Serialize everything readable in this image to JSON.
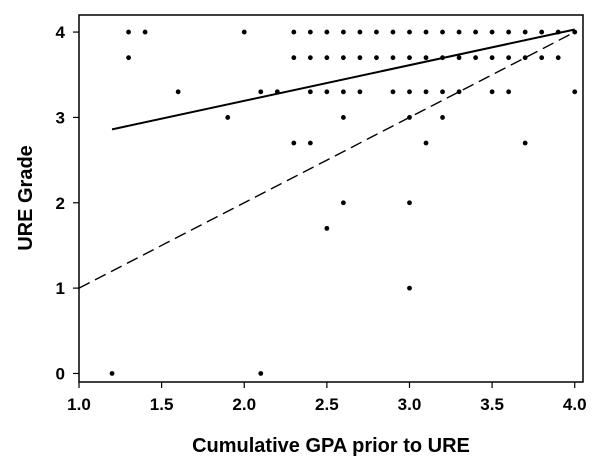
{
  "chart_data": {
    "type": "scatter",
    "title": "",
    "xlabel": "Cumulative GPA prior to URE",
    "ylabel": "URE Grade",
    "xlim": [
      1.0,
      4.05
    ],
    "ylim": [
      -0.1,
      4.2
    ],
    "xticks": [
      1.0,
      1.5,
      2.0,
      2.5,
      3.0,
      3.5,
      4.0
    ],
    "xtick_labels": [
      "1.0",
      "1.5",
      "2.0",
      "2.5",
      "3.0",
      "3.5",
      "4.0"
    ],
    "yticks": [
      0,
      1,
      2,
      3,
      4
    ],
    "ytick_labels": [
      "0",
      "1",
      "2",
      "3",
      "4"
    ],
    "grid": false,
    "legend": "none",
    "marker_color": "#000000",
    "points": [
      [
        1.2,
        0
      ],
      [
        2.1,
        0
      ],
      [
        3.0,
        1
      ],
      [
        2.5,
        1.7
      ],
      [
        2.6,
        2
      ],
      [
        3.0,
        2
      ],
      [
        2.3,
        2.7
      ],
      [
        2.4,
        2.7
      ],
      [
        3.1,
        2.7
      ],
      [
        3.7,
        2.7
      ],
      [
        1.9,
        3
      ],
      [
        2.6,
        3
      ],
      [
        3.0,
        3
      ],
      [
        3.2,
        3
      ],
      [
        1.6,
        3.3
      ],
      [
        2.1,
        3.3
      ],
      [
        2.2,
        3.3
      ],
      [
        2.4,
        3.3
      ],
      [
        2.5,
        3.3
      ],
      [
        2.6,
        3.3
      ],
      [
        2.7,
        3.3
      ],
      [
        2.9,
        3.3
      ],
      [
        3.0,
        3.3
      ],
      [
        3.1,
        3.3
      ],
      [
        3.2,
        3.3
      ],
      [
        3.3,
        3.3
      ],
      [
        3.5,
        3.3
      ],
      [
        3.6,
        3.3
      ],
      [
        4.0,
        3.3
      ],
      [
        1.3,
        3.7
      ],
      [
        2.3,
        3.7
      ],
      [
        2.4,
        3.7
      ],
      [
        2.5,
        3.7
      ],
      [
        2.6,
        3.7
      ],
      [
        2.7,
        3.7
      ],
      [
        2.8,
        3.7
      ],
      [
        2.9,
        3.7
      ],
      [
        3.0,
        3.7
      ],
      [
        3.1,
        3.7
      ],
      [
        3.2,
        3.7
      ],
      [
        3.3,
        3.7
      ],
      [
        3.4,
        3.7
      ],
      [
        3.5,
        3.7
      ],
      [
        3.6,
        3.7
      ],
      [
        3.7,
        3.7
      ],
      [
        3.8,
        3.7
      ],
      [
        3.9,
        3.7
      ],
      [
        1.3,
        4
      ],
      [
        1.4,
        4
      ],
      [
        2.0,
        4
      ],
      [
        2.3,
        4
      ],
      [
        2.4,
        4
      ],
      [
        2.5,
        4
      ],
      [
        2.6,
        4
      ],
      [
        2.7,
        4
      ],
      [
        2.8,
        4
      ],
      [
        2.9,
        4
      ],
      [
        3.0,
        4
      ],
      [
        3.1,
        4
      ],
      [
        3.2,
        4
      ],
      [
        3.3,
        4
      ],
      [
        3.4,
        4
      ],
      [
        3.5,
        4
      ],
      [
        3.6,
        4
      ],
      [
        3.7,
        4
      ],
      [
        3.8,
        4
      ],
      [
        3.9,
        4
      ],
      [
        4.0,
        4
      ]
    ],
    "lines": [
      {
        "style": "solid",
        "x": [
          1.2,
          4.0
        ],
        "y": [
          2.86,
          4.03
        ]
      },
      {
        "style": "dashed",
        "x": [
          1.0,
          4.0
        ],
        "y": [
          1.0,
          4.0
        ]
      }
    ]
  }
}
